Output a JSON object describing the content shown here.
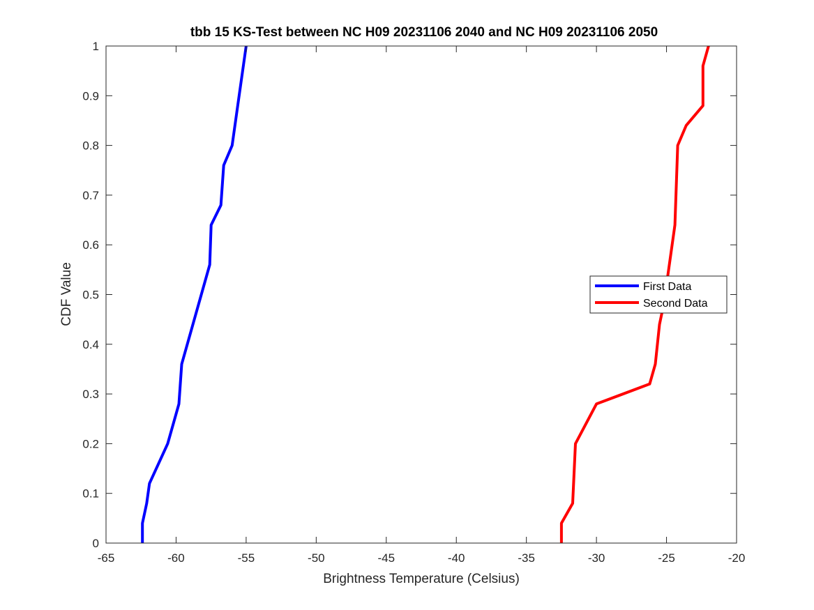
{
  "chart_data": {
    "type": "line",
    "title": "tbb 15 KS-Test between NC H09 20231106 2040 and NC H09 20231106 2050",
    "xlabel": "Brightness Temperature (Celsius)",
    "ylabel": "CDF Value",
    "xlim": [
      -65,
      -20
    ],
    "ylim": [
      0,
      1
    ],
    "xticks": [
      -65,
      -60,
      -55,
      -50,
      -45,
      -40,
      -35,
      -30,
      -25,
      -20
    ],
    "yticks": [
      0,
      0.1,
      0.2,
      0.3,
      0.4,
      0.5,
      0.6,
      0.7,
      0.8,
      0.9,
      1
    ],
    "grid": false,
    "legend_position": "right",
    "series": [
      {
        "name": "First Data",
        "color": "#0000ff",
        "x": [
          -62.4,
          -62.4,
          -62.1,
          -61.9,
          -60.6,
          -59.8,
          -59.7,
          -59.6,
          -57.6,
          -57.5,
          -56.8,
          -56.6,
          -56.0,
          -55.6,
          -55.0
        ],
        "y": [
          0,
          0.04,
          0.08,
          0.12,
          0.2,
          0.28,
          0.32,
          0.36,
          0.56,
          0.64,
          0.68,
          0.76,
          0.8,
          0.88,
          1.0
        ]
      },
      {
        "name": "Second Data",
        "color": "#ff0000",
        "x": [
          -32.5,
          -32.5,
          -31.7,
          -31.5,
          -30.0,
          -26.2,
          -25.8,
          -25.5,
          -25.2,
          -24.8,
          -24.4,
          -24.2,
          -23.6,
          -22.4,
          -22.4,
          -22.0
        ],
        "y": [
          0,
          0.04,
          0.08,
          0.2,
          0.28,
          0.32,
          0.36,
          0.44,
          0.48,
          0.56,
          0.64,
          0.8,
          0.84,
          0.88,
          0.96,
          1.0
        ]
      }
    ]
  }
}
